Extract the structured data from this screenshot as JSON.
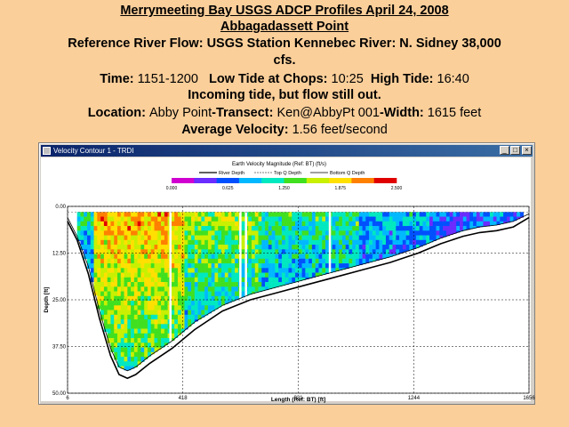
{
  "header": {
    "title": "Merrymeeting Bay USGS ADCP Profiles April 24, 2008",
    "subtitle": "Abbagadassett Point",
    "ref_flow_a": "Reference River Flow: USGS Station Kennebec River: N. Sidney  38,000",
    "ref_flow_b": "cfs.",
    "time_label": "Time:",
    "time_value": "1151-1200",
    "low_tide_label": "Low Tide at Chops:",
    "low_tide_value": "10:25",
    "high_tide_label": "High Tide:",
    "high_tide_value": "16:40",
    "tide_note": "Incoming tide, but flow still out.",
    "location_label": "Location:",
    "location_value": "Abby Point",
    "transect_label": "-Transect:",
    "transect_value": "Ken@AbbyPt 001",
    "width_label": "-Width:",
    "width_value": "1615 feet",
    "avg_velocity_label": "Average Velocity:",
    "avg_velocity_value": "1.56 feet/second"
  },
  "window": {
    "title": "Velocity Contour 1 - TRDI",
    "minimize": "_",
    "maximize": "□",
    "close": "×"
  },
  "chart_data": {
    "type": "heatmap",
    "title": "Earth Velocity Magnitude (Ref: BT) (ft/s)",
    "xlabel": "Length (Ref: BT) [ft]",
    "ylabel": "Depth [ft]",
    "xlim": [
      6,
      1656
    ],
    "ylim": [
      0,
      50
    ],
    "y_inverted": true,
    "x_ticks": [
      "6",
      "418",
      "831",
      "1244",
      "1656"
    ],
    "x_tick_values": [
      6,
      418,
      831,
      1244,
      1656
    ],
    "y_ticks": [
      "0.00",
      "12.50",
      "25.00",
      "37.50",
      "50.00"
    ],
    "y_tick_values": [
      0,
      12.5,
      25,
      37.5,
      50
    ],
    "colorbar": {
      "min": 0,
      "max": 2.5,
      "ticks": [
        "0.000",
        "0.625",
        "1.250",
        "1.875",
        "2.500"
      ],
      "colors": [
        "#d000d0",
        "#6a2cff",
        "#0050ff",
        "#00b8ff",
        "#00e8c0",
        "#40e020",
        "#c8f000",
        "#ffe000",
        "#ff8000",
        "#e00000"
      ]
    },
    "legend": [
      "River Depth",
      "Top Q Depth",
      "Bottom Q Depth"
    ],
    "legend_placement": "top",
    "grid": "dashed",
    "river_depth": [
      [
        6,
        4
      ],
      [
        40,
        9
      ],
      [
        80,
        18
      ],
      [
        120,
        30
      ],
      [
        160,
        40
      ],
      [
        190,
        45
      ],
      [
        220,
        46
      ],
      [
        250,
        45
      ],
      [
        300,
        42
      ],
      [
        380,
        38
      ],
      [
        460,
        33
      ],
      [
        560,
        28
      ],
      [
        660,
        25
      ],
      [
        760,
        23
      ],
      [
        860,
        21
      ],
      [
        960,
        19
      ],
      [
        1060,
        17
      ],
      [
        1160,
        15
      ],
      [
        1260,
        12.5
      ],
      [
        1340,
        10
      ],
      [
        1420,
        8
      ],
      [
        1480,
        7
      ],
      [
        1540,
        6.5
      ],
      [
        1600,
        5.5
      ],
      [
        1656,
        3
      ]
    ],
    "bottom_q_depth": [
      [
        6,
        3
      ],
      [
        40,
        8
      ],
      [
        80,
        16
      ],
      [
        120,
        28
      ],
      [
        160,
        38
      ],
      [
        190,
        43
      ],
      [
        220,
        44
      ],
      [
        250,
        43
      ],
      [
        300,
        40
      ],
      [
        380,
        36
      ],
      [
        460,
        31
      ],
      [
        560,
        26.5
      ],
      [
        660,
        23.5
      ],
      [
        760,
        21.5
      ],
      [
        860,
        19.5
      ],
      [
        960,
        17.5
      ],
      [
        1060,
        15.5
      ],
      [
        1160,
        13.5
      ],
      [
        1260,
        11
      ],
      [
        1340,
        8.5
      ],
      [
        1420,
        6.5
      ],
      [
        1480,
        5.5
      ],
      [
        1540,
        5
      ],
      [
        1600,
        4
      ],
      [
        1656,
        2
      ]
    ],
    "top_q_depth": 1.5,
    "gaps_x": [
      370,
      620,
      640,
      940
    ]
  }
}
